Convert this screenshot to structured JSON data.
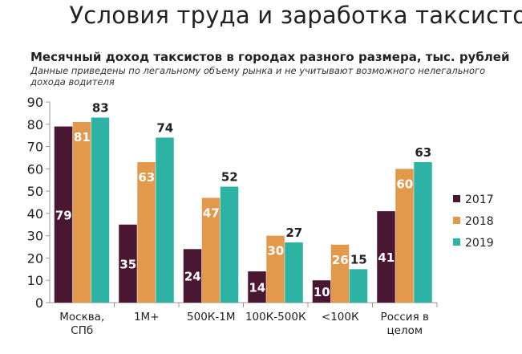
{
  "header": {
    "title": "Условия труда и заработка таксистов"
  },
  "chart_data": {
    "type": "bar",
    "title": "Месячный доход таксистов в городах разного размера, тыс. рублей",
    "subtitle": "Данные приведены по легальному объему рынка и не учитывают возможного нелегального дохода водителя",
    "categories": [
      [
        "Москва,",
        "СПб"
      ],
      [
        "1М+"
      ],
      [
        "500К-1М"
      ],
      [
        "100К-500К"
      ],
      [
        "<100К"
      ],
      [
        "Россия в",
        "целом"
      ]
    ],
    "series": [
      {
        "name": "2017",
        "color": "#4a1733",
        "values": [
          79,
          35,
          24,
          14,
          10,
          41
        ]
      },
      {
        "name": "2018",
        "color": "#e3994b",
        "values": [
          81,
          63,
          47,
          30,
          26,
          60
        ]
      },
      {
        "name": "2019",
        "color": "#2db3a3",
        "values": [
          83,
          74,
          52,
          27,
          15,
          63
        ]
      }
    ],
    "ylim": [
      0,
      90
    ],
    "yticks": [
      0,
      10,
      20,
      30,
      40,
      50,
      60,
      70,
      80,
      90
    ],
    "legend": "right",
    "grid": false
  }
}
